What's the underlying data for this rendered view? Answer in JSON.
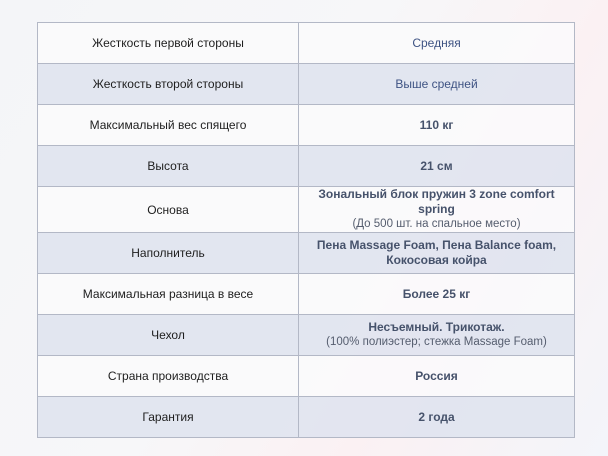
{
  "rows": [
    {
      "label": "Жесткость первой стороны",
      "value": "Средняя",
      "note": ""
    },
    {
      "label": "Жесткость второй стороны",
      "value": "Выше средней",
      "note": ""
    },
    {
      "label": "Максимальный вес спящего",
      "value": "110 кг",
      "note": ""
    },
    {
      "label": "Высота",
      "value": "21 см",
      "note": ""
    },
    {
      "label": "Основа",
      "value": "Зональный блок пружин 3 zone comfort spring",
      "note": "(До 500 шт. на спальное место)"
    },
    {
      "label": "Наполнитель",
      "value": "Пена Massage Foam,  Пена Balance foam, Кокосовая койра",
      "note": ""
    },
    {
      "label": "Максимальная разница в весе",
      "value": "Более 25 кг",
      "note": ""
    },
    {
      "label": "Чехол",
      "value": "Несъемный. Трикотаж.",
      "note": "(100% полиэстер; стежка Massage Foam)"
    },
    {
      "label": "Страна производства",
      "value": "Россия",
      "note": ""
    },
    {
      "label": "Гарантия",
      "value": "2 года",
      "note": ""
    }
  ]
}
